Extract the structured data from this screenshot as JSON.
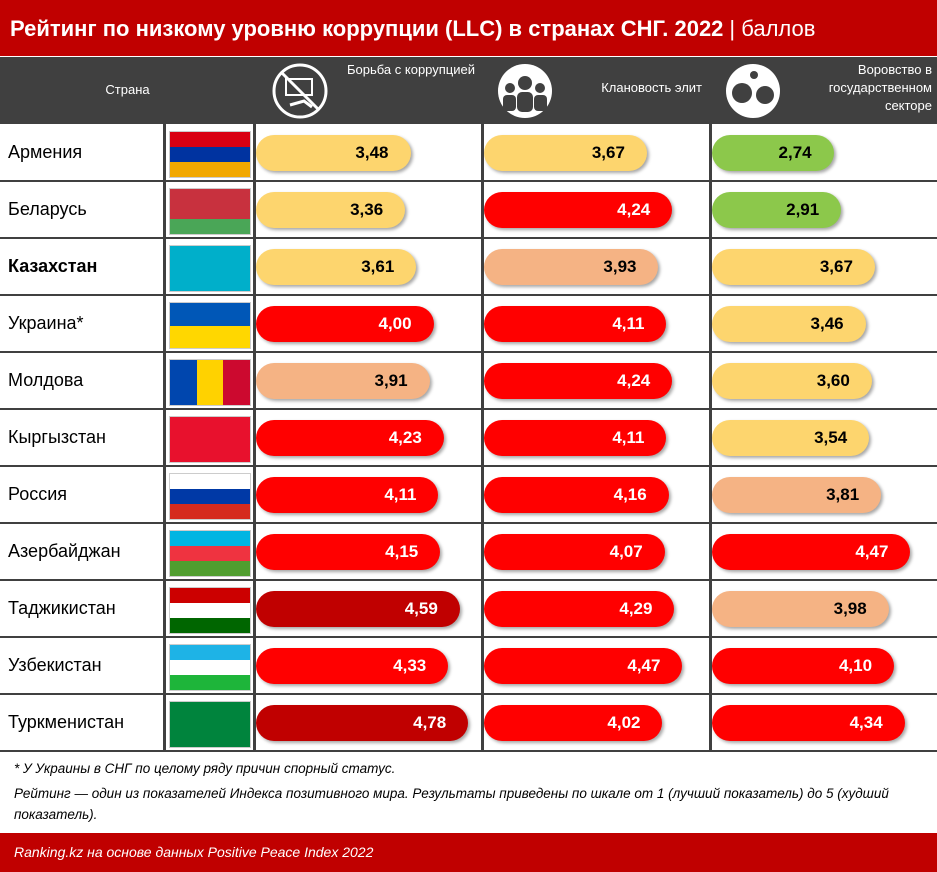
{
  "chart_data": {
    "type": "bar",
    "title": "Рейтинг по низкому уровню коррупции (LLC) в странах СНГ. 2022",
    "unit": "| баллов",
    "category_label": "Страна",
    "categories": [
      "Армения",
      "Беларусь",
      "Казахстан",
      "Украина*",
      "Молдова",
      "Кыргызстан",
      "Россия",
      "Азербайджан",
      "Таджикистан",
      "Узбекистан",
      "Туркменистан"
    ],
    "xlim": [
      0,
      5
    ],
    "series": [
      {
        "name": "Борьба с коррупцией",
        "values": [
          3.48,
          3.36,
          3.61,
          4.0,
          3.91,
          4.23,
          4.11,
          4.15,
          4.59,
          4.33,
          4.78
        ],
        "value_labels": [
          "3,48",
          "3,36",
          "3,61",
          "4,00",
          "3,91",
          "4,23",
          "4,11",
          "4,15",
          "4,59",
          "4,33",
          "4,78"
        ],
        "colors": [
          "#fdd56e",
          "#fdd56e",
          "#fdd56e",
          "#ff0000",
          "#f5b384",
          "#ff0000",
          "#ff0000",
          "#ff0000",
          "#c00000",
          "#ff0000",
          "#c00000"
        ]
      },
      {
        "name": "Клановость элит",
        "values": [
          3.67,
          4.24,
          3.93,
          4.11,
          4.24,
          4.11,
          4.16,
          4.07,
          4.29,
          4.47,
          4.02
        ],
        "value_labels": [
          "3,67",
          "4,24",
          "3,93",
          "4,11",
          "4,24",
          "4,11",
          "4,16",
          "4,07",
          "4,29",
          "4,47",
          "4,02"
        ],
        "colors": [
          "#fdd56e",
          "#ff0000",
          "#f5b384",
          "#ff0000",
          "#ff0000",
          "#ff0000",
          "#ff0000",
          "#ff0000",
          "#ff0000",
          "#ff0000",
          "#ff0000"
        ]
      },
      {
        "name": "Воровство в государственном секторе",
        "values": [
          2.74,
          2.91,
          3.67,
          3.46,
          3.6,
          3.54,
          3.81,
          4.47,
          3.98,
          4.1,
          4.34
        ],
        "value_labels": [
          "2,74",
          "2,91",
          "3,67",
          "3,46",
          "3,60",
          "3,54",
          "3,81",
          "4,47",
          "3,98",
          "4,10",
          "4,34"
        ],
        "colors": [
          "#8cc84b",
          "#8cc84b",
          "#fdd56e",
          "#fdd56e",
          "#fdd56e",
          "#fdd56e",
          "#f5b384",
          "#ff0000",
          "#f5b384",
          "#ff0000",
          "#ff0000"
        ]
      }
    ],
    "notes": [
      "* У Украины в СНГ по целому ряду причин спорный статус.",
      "Рейтинг — один из показателей Индекса позитивного мира. Результаты приведены по шкале от 1 (лучший показатель) до 5 (худший показатель)."
    ],
    "source": "Ranking.kz на основе данных Positive Peace Index 2022"
  }
}
